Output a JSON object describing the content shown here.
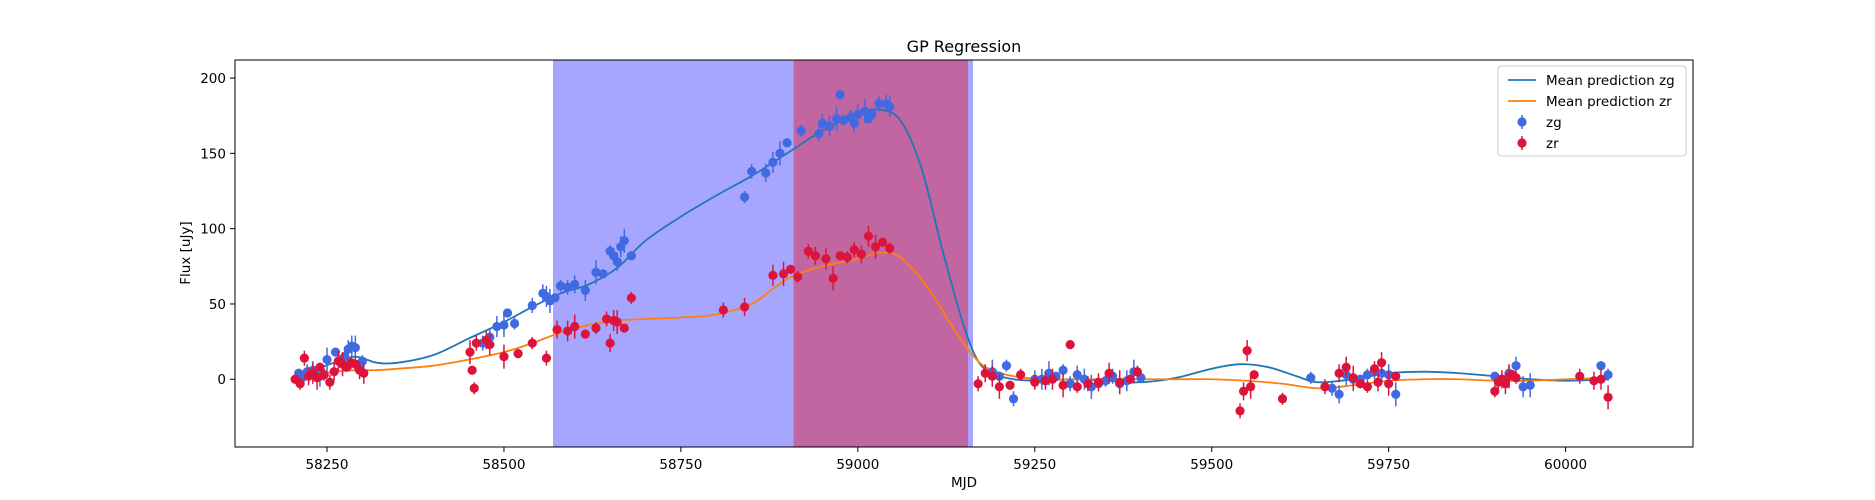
{
  "chart_data": {
    "type": "scatter",
    "title": "GP Regression",
    "xlabel": "MJD",
    "ylabel": "Flux [uJy]",
    "xlim": [
      58120,
      60180
    ],
    "ylim": [
      -45,
      212
    ],
    "xticks": [
      58250,
      58500,
      58750,
      59000,
      59250,
      59500,
      59750,
      60000
    ],
    "yticks": [
      0,
      50,
      100,
      150,
      200
    ],
    "grid": false,
    "legend_position": "top-right",
    "shaded_regions": [
      {
        "x0": 58570,
        "x1": 59162,
        "color": "#a6a6fe"
      },
      {
        "x0": 58910,
        "x1": 59155,
        "color": "#c266a1"
      }
    ],
    "series": [
      {
        "name": "Mean prediction zg",
        "kind": "line",
        "color": "#1f77b4",
        "x": [
          58205,
          58230,
          58260,
          58290,
          58320,
          58350,
          58400,
          58450,
          58500,
          58540,
          58580,
          58620,
          58660,
          58700,
          58750,
          58800,
          58850,
          58900,
          58950,
          59000,
          59030,
          59060,
          59090,
          59120,
          59150,
          59170,
          59190,
          59220,
          59260,
          59300,
          59350,
          59400,
          59450,
          59500,
          59540,
          59580,
          59620,
          59650,
          59700,
          59750,
          59800,
          59850,
          59900,
          59950,
          60000,
          60060
        ],
        "y": [
          4,
          6,
          11,
          15,
          11,
          11,
          16,
          27,
          38,
          48,
          57,
          63,
          74,
          92,
          108,
          122,
          135,
          150,
          165,
          176,
          179,
          172,
          140,
          85,
          35,
          12,
          4,
          0,
          -1,
          0,
          -1,
          -2,
          1,
          7,
          10,
          8,
          2,
          -2,
          0,
          4,
          5,
          4,
          2,
          0,
          -1,
          0
        ]
      },
      {
        "name": "Mean prediction zr",
        "kind": "line",
        "color": "#ff7f0e",
        "x": [
          58205,
          58230,
          58260,
          58290,
          58320,
          58350,
          58400,
          58450,
          58500,
          58540,
          58580,
          58620,
          58660,
          58700,
          58750,
          58800,
          58850,
          58880,
          58910,
          58950,
          59000,
          59030,
          59060,
          59100,
          59140,
          59170,
          59190,
          59220,
          59260,
          59300,
          59350,
          59400,
          59450,
          59500,
          59550,
          59600,
          59650,
          59700,
          59750,
          59800,
          59850,
          59900,
          59950,
          60000,
          60060
        ],
        "y": [
          2,
          3,
          5,
          6,
          6,
          7,
          9,
          13,
          18,
          24,
          31,
          36,
          39,
          40,
          41,
          43,
          50,
          60,
          69,
          75,
          80,
          84,
          81,
          60,
          30,
          12,
          6,
          2,
          0,
          0,
          0,
          0,
          0,
          0,
          -1,
          -3,
          -6,
          -4,
          -1,
          0,
          0,
          -1,
          -1,
          0,
          1
        ]
      },
      {
        "name": "zg",
        "kind": "errorbar",
        "color": "#4169e1",
        "x": [
          58210,
          58215,
          58222,
          58230,
          58240,
          58250,
          58262,
          58268,
          58275,
          58280,
          58285,
          58290,
          58295,
          58300,
          58470,
          58480,
          58490,
          58500,
          58505,
          58515,
          58540,
          58555,
          58560,
          58565,
          58572,
          58580,
          58590,
          58600,
          58615,
          58630,
          58640,
          58650,
          58655,
          58660,
          58665,
          58670,
          58680,
          58840,
          58850,
          58870,
          58880,
          58890,
          58900,
          58920,
          58945,
          58950,
          58960,
          58970,
          58975,
          58980,
          58990,
          58995,
          59000,
          59010,
          59015,
          59020,
          59030,
          59040,
          59045,
          59190,
          59200,
          59210,
          59220,
          59250,
          59260,
          59270,
          59280,
          59290,
          59300,
          59310,
          59320,
          59330,
          59340,
          59350,
          59360,
          59370,
          59380,
          59390,
          59400,
          59640,
          59670,
          59680,
          59690,
          59700,
          59710,
          59720,
          59730,
          59740,
          59750,
          59760,
          59900,
          59910,
          59920,
          59930,
          59940,
          59950,
          60050,
          60060
        ],
        "y": [
          4,
          1,
          5,
          6,
          2,
          13,
          18,
          12,
          15,
          20,
          22,
          21,
          10,
          12,
          24,
          28,
          35,
          36,
          44,
          37,
          49,
          57,
          55,
          52,
          54,
          62,
          61,
          63,
          59,
          71,
          70,
          85,
          82,
          78,
          88,
          92,
          82,
          121,
          138,
          137,
          144,
          150,
          157,
          165,
          163,
          170,
          168,
          173,
          189,
          172,
          174,
          170,
          176,
          178,
          173,
          176,
          183,
          183,
          181,
          5,
          2,
          9,
          -13,
          0,
          0,
          4,
          2,
          6,
          -3,
          3,
          0,
          -5,
          -3,
          -1,
          2,
          -3,
          -1,
          5,
          1,
          1,
          -6,
          -10,
          3,
          0,
          0,
          3,
          5,
          4,
          3,
          -10,
          2,
          0,
          4,
          9,
          -5,
          -4,
          9,
          3
        ]
      },
      {
        "name": "zr",
        "kind": "errorbar",
        "color": "#dc143c",
        "x": [
          58205,
          58212,
          58218,
          58224,
          58230,
          58236,
          58240,
          58246,
          58254,
          58260,
          58266,
          58272,
          58278,
          58284,
          58290,
          58296,
          58302,
          58452,
          58455,
          58458,
          58461,
          58475,
          58480,
          58500,
          58520,
          58540,
          58560,
          58575,
          58590,
          58600,
          58615,
          58630,
          58645,
          58650,
          58655,
          58660,
          58670,
          58680,
          58810,
          58840,
          58880,
          58895,
          58905,
          58915,
          58930,
          58940,
          58955,
          58965,
          58975,
          58985,
          58995,
          59005,
          59015,
          59025,
          59035,
          59045,
          59170,
          59180,
          59190,
          59200,
          59215,
          59230,
          59250,
          59265,
          59275,
          59290,
          59300,
          59310,
          59325,
          59340,
          59355,
          59370,
          59385,
          59395,
          59540,
          59545,
          59550,
          59555,
          59560,
          59600,
          59660,
          59680,
          59690,
          59700,
          59710,
          59720,
          59730,
          59735,
          59740,
          59750,
          59760,
          59900,
          59905,
          59910,
          59915,
          59920,
          59925,
          59930,
          60020,
          60040,
          60050,
          60060
        ],
        "y": [
          0,
          -3,
          14,
          2,
          4,
          1,
          8,
          3,
          -2,
          5,
          12,
          10,
          8,
          11,
          10,
          6,
          4,
          18,
          6,
          -6,
          24,
          26,
          23,
          15,
          17,
          24,
          14,
          33,
          32,
          35,
          30,
          34,
          40,
          24,
          39,
          38,
          34,
          54,
          46,
          48,
          69,
          70,
          73,
          68,
          85,
          82,
          80,
          67,
          82,
          81,
          86,
          83,
          95,
          88,
          91,
          87,
          -3,
          4,
          2,
          -5,
          -4,
          3,
          -2,
          -1,
          0,
          -4,
          23,
          -5,
          -3,
          -2,
          4,
          -2,
          0,
          5,
          -21,
          -8,
          19,
          -5,
          3,
          -13,
          -5,
          4,
          8,
          1,
          -3,
          -5,
          7,
          -2,
          11,
          -3,
          2,
          -8,
          -2,
          0,
          -3,
          2,
          3,
          1,
          2,
          -1,
          0,
          -12
        ]
      }
    ]
  }
}
